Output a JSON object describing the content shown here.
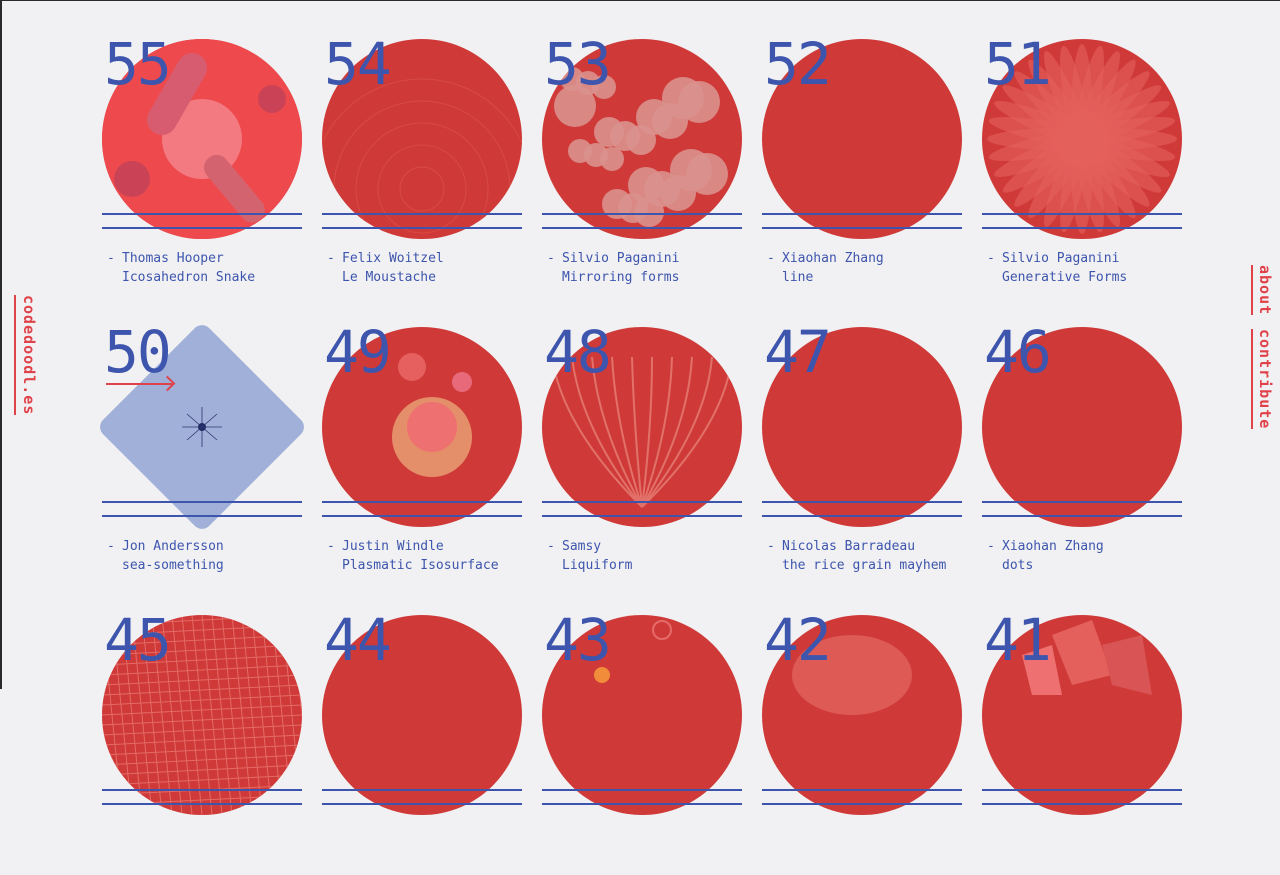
{
  "logo": "codedoodl.es",
  "nav": [
    {
      "label": "about"
    },
    {
      "label": "contribute"
    }
  ],
  "items": [
    {
      "num": "55",
      "author": "Thomas Hooper",
      "title": "Icosahedron Snake",
      "style": "pink"
    },
    {
      "num": "54",
      "author": "Felix Woitzel",
      "title": "Le Moustache",
      "style": "rings"
    },
    {
      "num": "53",
      "author": "Silvio Paganini",
      "title": "Mirroring forms",
      "style": "bubbles"
    },
    {
      "num": "52",
      "author": "Xiaohan Zhang",
      "title": "line",
      "style": "plain"
    },
    {
      "num": "51",
      "author": "Silvio Paganini",
      "title": "Generative Forms",
      "style": "star"
    },
    {
      "num": "50",
      "author": "Jon Andersson",
      "title": "sea-something",
      "style": "diamond"
    },
    {
      "num": "49",
      "author": "Justin Windle",
      "title": "Plasmatic Isosurface",
      "style": "plasma"
    },
    {
      "num": "48",
      "author": "Samsy",
      "title": "Liquiform",
      "style": "veins"
    },
    {
      "num": "47",
      "author": "Nicolas Barradeau",
      "title": "the rice grain mayhem",
      "style": "plain"
    },
    {
      "num": "46",
      "author": "Xiaohan Zhang",
      "title": "dots",
      "style": "plain"
    },
    {
      "num": "45",
      "author": "",
      "title": "",
      "style": "grid"
    },
    {
      "num": "44",
      "author": "",
      "title": "",
      "style": "plain"
    },
    {
      "num": "43",
      "author": "",
      "title": "",
      "style": "orange"
    },
    {
      "num": "42",
      "author": "",
      "title": "",
      "style": "face"
    },
    {
      "num": "41",
      "author": "",
      "title": "",
      "style": "shards"
    }
  ],
  "colors": {
    "accent": "#e0424a",
    "blue": "#3d55ad",
    "circle": "#cf3a38",
    "background": "#f1f1f3"
  }
}
